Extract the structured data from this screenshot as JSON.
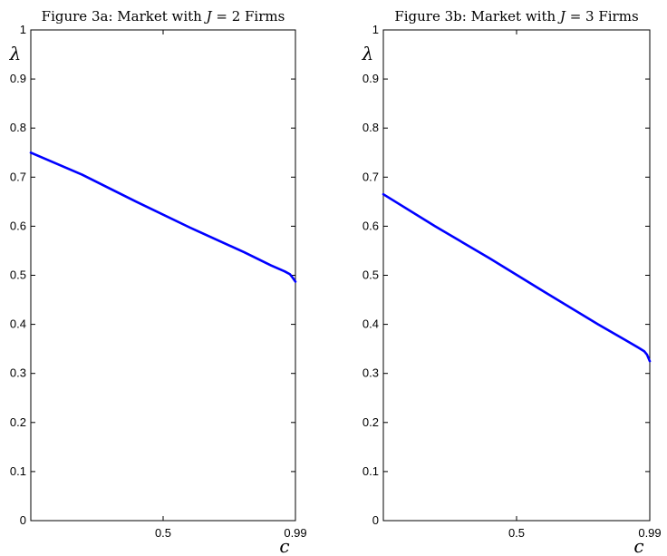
{
  "chart_data": [
    {
      "type": "line",
      "title": "Figure 3a: Market with J = 2 Firms",
      "title_parts": {
        "prefix": "Figure 3a: Market with ",
        "variable": "J",
        "suffix": " = 2 Firms"
      },
      "xlabel": "c",
      "ylabel": "λ",
      "xlim": [
        0.01,
        0.99
      ],
      "ylim": [
        0,
        1
      ],
      "xticks": [
        0.5,
        0.99
      ],
      "xtick_labels": [
        "0.5",
        "0.99"
      ],
      "yticks": [
        0,
        0.1,
        0.2,
        0.3,
        0.4,
        0.5,
        0.6,
        0.7,
        0.8,
        0.9,
        1
      ],
      "ytick_labels": [
        "0",
        "0.1",
        "0.2",
        "0.3",
        "0.4",
        "0.5",
        "0.6",
        "0.7",
        "0.8",
        "0.9",
        "1"
      ],
      "grid": false,
      "line_color": "#0000ff",
      "series": [
        {
          "x": [
            0.01,
            0.2,
            0.4,
            0.6,
            0.8,
            0.9,
            0.95,
            0.97,
            0.98,
            0.99
          ],
          "y": [
            0.75,
            0.705,
            0.65,
            0.597,
            0.547,
            0.52,
            0.508,
            0.502,
            0.495,
            0.487
          ]
        }
      ]
    },
    {
      "type": "line",
      "title": "Figure 3b: Market with J = 3 Firms",
      "title_parts": {
        "prefix": "Figure 3b: Market with ",
        "variable": "J",
        "suffix": " = 3 Firms"
      },
      "xlabel": "c",
      "ylabel": "λ",
      "xlim": [
        0.01,
        0.99
      ],
      "ylim": [
        0,
        1
      ],
      "xticks": [
        0.5,
        0.99
      ],
      "xtick_labels": [
        "0.5",
        "0.99"
      ],
      "yticks": [
        0,
        0.1,
        0.2,
        0.3,
        0.4,
        0.5,
        0.6,
        0.7,
        0.8,
        0.9,
        1
      ],
      "ytick_labels": [
        "0",
        "0.1",
        "0.2",
        "0.3",
        "0.4",
        "0.5",
        "0.6",
        "0.7",
        "0.8",
        "0.9",
        "1"
      ],
      "grid": false,
      "line_color": "#0000ff",
      "series": [
        {
          "x": [
            0.01,
            0.2,
            0.4,
            0.6,
            0.8,
            0.9,
            0.95,
            0.97,
            0.98,
            0.99
          ],
          "y": [
            0.665,
            0.6,
            0.535,
            0.467,
            0.4,
            0.368,
            0.352,
            0.345,
            0.338,
            0.325
          ]
        }
      ]
    }
  ]
}
